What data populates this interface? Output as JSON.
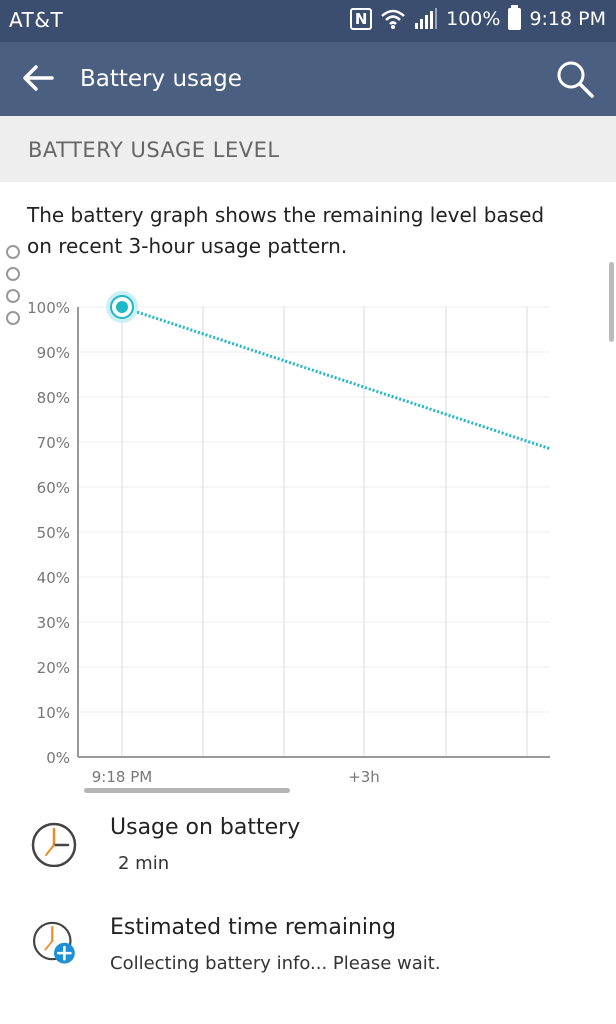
{
  "status_bar": {
    "carrier": "AT&T",
    "nfc_symbol": "N",
    "battery_percent": "100%",
    "time": "9:18 PM"
  },
  "app_bar": {
    "title": "Battery usage",
    "back_icon": "arrow-left-icon",
    "search_icon": "search-icon"
  },
  "section": {
    "header": "BATTERY USAGE LEVEL",
    "description": "The battery graph shows the remaining level based on recent 3-hour usage pattern."
  },
  "chart_data": {
    "type": "line",
    "y_ticks": [
      "100%",
      "90%",
      "80%",
      "70%",
      "60%",
      "50%",
      "40%",
      "30%",
      "20%",
      "10%",
      "0%"
    ],
    "x_ticks": [
      "9:18 PM",
      "+3h"
    ],
    "ylim": [
      0,
      100
    ],
    "grid": true,
    "series": [
      {
        "values": [
          100,
          68.5
        ],
        "x": [
          "9:18 PM",
          "end"
        ],
        "style": "dotted-projection",
        "color": "#1fb8c6"
      }
    ]
  },
  "list": [
    {
      "title": "Usage on battery",
      "subtitle": "2 min",
      "icon": "clock-icon"
    },
    {
      "title": "Estimated time remaining",
      "subtitle": "Collecting battery info... Please wait.",
      "icon": "clock-plus-icon"
    }
  ],
  "colors": {
    "status_bar": "#3b4e6f",
    "app_bar": "#4b5f80",
    "accent": "#1fb8c6",
    "header_bg": "#eeeeee"
  }
}
